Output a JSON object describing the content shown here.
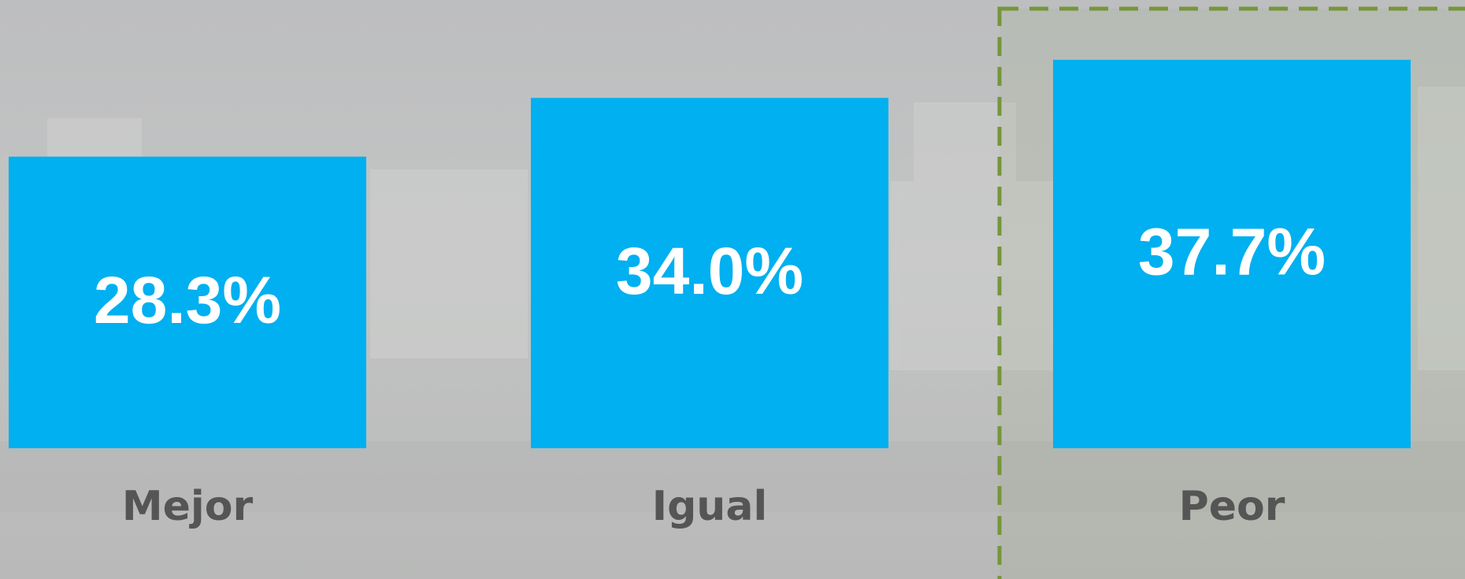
{
  "chart_data": {
    "type": "bar",
    "categories": [
      "Mejor",
      "Igual",
      "Peor"
    ],
    "values": [
      28.3,
      34.0,
      37.7
    ],
    "value_labels": [
      "28.3%",
      "34.0%",
      "37.7%"
    ],
    "color": "#00b0f0",
    "highlight": "Peor",
    "highlight_color": "#76963a"
  }
}
